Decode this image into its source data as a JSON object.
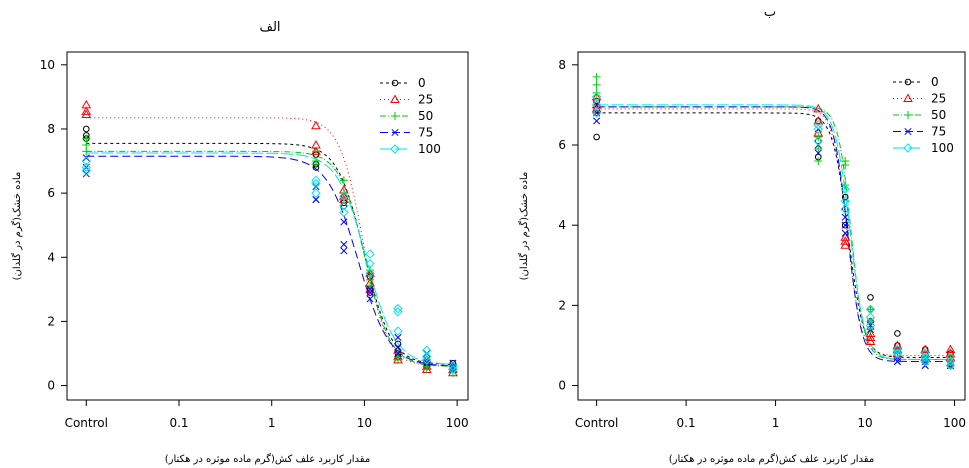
{
  "chart_data": [
    {
      "type": "scatter",
      "title": "الف",
      "xlabel": "مقدار کاربرد علف کش(گرم ماده موثره در هکتار)",
      "ylabel": "ماده خشک(گرم در گلدان)",
      "x_scale": "log",
      "xlim": [
        0.01,
        100
      ],
      "ylim": [
        0,
        10
      ],
      "x_ticks": [
        {
          "value": 0.01,
          "label": "Control"
        },
        {
          "value": 0.1,
          "label": "0.1"
        },
        {
          "value": 1,
          "label": "1"
        },
        {
          "value": 10,
          "label": "10"
        },
        {
          "value": 100,
          "label": "100"
        }
      ],
      "y_ticks": [
        0,
        2,
        4,
        6,
        8,
        10
      ],
      "grid": false,
      "legend_position": "top-right",
      "series": [
        {
          "name": "0",
          "color": "#000000",
          "marker": "circle",
          "dash": "3,3",
          "fit": {
            "upper": 7.55,
            "lower": 0.65,
            "ed50": 10.0,
            "slope": 3.0
          },
          "points": [
            [
              0.01,
              8.0
            ],
            [
              0.01,
              7.8
            ],
            [
              0.01,
              7.7
            ],
            [
              3,
              7.2
            ],
            [
              3,
              6.9
            ],
            [
              3,
              6.8
            ],
            [
              6,
              5.9
            ],
            [
              6,
              5.7
            ],
            [
              6,
              5.6
            ],
            [
              11.5,
              3.4
            ],
            [
              11.5,
              3.0
            ],
            [
              11.5,
              2.9
            ],
            [
              23,
              1.3
            ],
            [
              23,
              1.0
            ],
            [
              23,
              0.9
            ],
            [
              47,
              0.9
            ],
            [
              47,
              0.7
            ],
            [
              47,
              0.6
            ],
            [
              90,
              0.7
            ],
            [
              90,
              0.5
            ],
            [
              90,
              0.5
            ]
          ]
        },
        {
          "name": "25",
          "color": "#ff0000",
          "marker": "triangle",
          "dash": "1,3",
          "fit": {
            "upper": 8.35,
            "lower": 0.6,
            "ed50": 9.7,
            "slope": 3.4
          },
          "points": [
            [
              0.01,
              8.75
            ],
            [
              0.01,
              8.55
            ],
            [
              0.01,
              8.45
            ],
            [
              3,
              8.1
            ],
            [
              3,
              7.5
            ],
            [
              3,
              7.3
            ],
            [
              6,
              6.1
            ],
            [
              6,
              5.9
            ],
            [
              6,
              5.8
            ],
            [
              11.5,
              3.5
            ],
            [
              11.5,
              3.2
            ],
            [
              11.5,
              3.0
            ],
            [
              23,
              1.1
            ],
            [
              23,
              0.9
            ],
            [
              23,
              0.8
            ],
            [
              47,
              0.8
            ],
            [
              47,
              0.6
            ],
            [
              47,
              0.5
            ],
            [
              90,
              0.6
            ],
            [
              90,
              0.5
            ],
            [
              90,
              0.4
            ]
          ]
        },
        {
          "name": "50",
          "color": "#00cc00",
          "marker": "plus",
          "dash": "6,2,1,2",
          "fit": {
            "upper": 7.3,
            "lower": 0.6,
            "ed50": 10.2,
            "slope": 3.2
          },
          "points": [
            [
              0.01,
              7.7
            ],
            [
              0.01,
              7.5
            ],
            [
              0.01,
              7.3
            ],
            [
              3,
              7.3
            ],
            [
              3,
              7.0
            ],
            [
              3,
              6.9
            ],
            [
              6,
              6.4
            ],
            [
              6,
              6.0
            ],
            [
              6,
              5.8
            ],
            [
              11.5,
              3.6
            ],
            [
              11.5,
              3.3
            ],
            [
              11.5,
              3.1
            ],
            [
              23,
              1.0
            ],
            [
              23,
              0.9
            ],
            [
              23,
              0.8
            ],
            [
              47,
              0.7
            ],
            [
              47,
              0.6
            ],
            [
              47,
              0.5
            ],
            [
              90,
              0.6
            ],
            [
              90,
              0.5
            ],
            [
              90,
              0.4
            ]
          ]
        },
        {
          "name": "75",
          "color": "#0000ff",
          "marker": "cross",
          "dash": "8,4",
          "fit": {
            "upper": 7.15,
            "lower": 0.6,
            "ed50": 8.6,
            "slope": 2.6
          },
          "points": [
            [
              0.01,
              7.1
            ],
            [
              0.01,
              6.8
            ],
            [
              0.01,
              6.6
            ],
            [
              3,
              6.2
            ],
            [
              3,
              5.8
            ],
            [
              3,
              5.8
            ],
            [
              6,
              4.4
            ],
            [
              6,
              4.2
            ],
            [
              6,
              5.1
            ],
            [
              11.5,
              3.0
            ],
            [
              11.5,
              2.9
            ],
            [
              11.5,
              2.7
            ],
            [
              23,
              1.5
            ],
            [
              23,
              1.2
            ],
            [
              23,
              1.0
            ],
            [
              47,
              1.0
            ],
            [
              47,
              0.8
            ],
            [
              47,
              0.7
            ],
            [
              90,
              0.7
            ],
            [
              90,
              0.6
            ],
            [
              90,
              0.5
            ]
          ]
        },
        {
          "name": "100",
          "color": "#00e5ee",
          "marker": "diamond",
          "dash": "12,3",
          "fit": {
            "upper": 7.25,
            "lower": 0.65,
            "ed50": 10.5,
            "slope": 2.8
          },
          "points": [
            [
              0.01,
              7.0
            ],
            [
              0.01,
              6.8
            ],
            [
              0.01,
              6.7
            ],
            [
              3,
              6.4
            ],
            [
              3,
              6.3
            ],
            [
              3,
              6.0
            ],
            [
              6,
              5.9
            ],
            [
              6,
              5.6
            ],
            [
              6,
              5.4
            ],
            [
              11.5,
              4.1
            ],
            [
              11.5,
              3.8
            ],
            [
              11.5,
              3.5
            ],
            [
              23,
              2.4
            ],
            [
              23,
              2.3
            ],
            [
              23,
              1.7
            ],
            [
              47,
              1.1
            ],
            [
              47,
              0.9
            ],
            [
              47,
              0.8
            ],
            [
              90,
              0.6
            ],
            [
              90,
              0.5
            ],
            [
              90,
              0.5
            ]
          ]
        }
      ]
    },
    {
      "type": "scatter",
      "title": "ب",
      "xlabel": "مقدار کاربرد علف کش(گرم ماده موثره در هکتار)",
      "ylabel": "ماده خشک(گرم در گلدان)",
      "x_scale": "log",
      "xlim": [
        0.01,
        100
      ],
      "ylim": [
        0,
        8
      ],
      "x_ticks": [
        {
          "value": 0.01,
          "label": "Control"
        },
        {
          "value": 0.1,
          "label": "0.1"
        },
        {
          "value": 1,
          "label": "1"
        },
        {
          "value": 10,
          "label": "10"
        },
        {
          "value": 100,
          "label": "100"
        }
      ],
      "y_ticks": [
        0,
        2,
        4,
        6,
        8
      ],
      "grid": false,
      "legend_position": "top-right",
      "series": [
        {
          "name": "0",
          "color": "#000000",
          "marker": "circle",
          "dash": "3,3",
          "fit": {
            "upper": 6.8,
            "lower": 0.7,
            "ed50": 6.5,
            "slope": 5.0
          },
          "points": [
            [
              0.01,
              7.1
            ],
            [
              0.01,
              6.8
            ],
            [
              0.01,
              6.2
            ],
            [
              3,
              6.6
            ],
            [
              3,
              6.1
            ],
            [
              3,
              5.7
            ],
            [
              6,
              4.7
            ],
            [
              6,
              4.4
            ],
            [
              6,
              4.0
            ],
            [
              11.5,
              2.2
            ],
            [
              11.5,
              1.9
            ],
            [
              11.5,
              1.6
            ],
            [
              23,
              1.3
            ],
            [
              23,
              1.0
            ],
            [
              23,
              0.9
            ],
            [
              47,
              0.9
            ],
            [
              47,
              0.7
            ],
            [
              47,
              0.6
            ],
            [
              90,
              0.8
            ],
            [
              90,
              0.6
            ],
            [
              90,
              0.5
            ]
          ]
        },
        {
          "name": "25",
          "color": "#ff0000",
          "marker": "triangle",
          "dash": "1,3",
          "fit": {
            "upper": 6.9,
            "lower": 0.75,
            "ed50": 6.3,
            "slope": 5.6
          },
          "points": [
            [
              0.01,
              7.2
            ],
            [
              0.01,
              7.0
            ],
            [
              0.01,
              6.9
            ],
            [
              3,
              6.9
            ],
            [
              3,
              6.6
            ],
            [
              3,
              6.3
            ],
            [
              6,
              3.7
            ],
            [
              6,
              3.5
            ],
            [
              6,
              3.6
            ],
            [
              11.5,
              1.3
            ],
            [
              11.5,
              1.2
            ],
            [
              11.5,
              1.1
            ],
            [
              23,
              1.0
            ],
            [
              23,
              0.9
            ],
            [
              23,
              0.8
            ],
            [
              47,
              0.9
            ],
            [
              47,
              0.8
            ],
            [
              47,
              0.7
            ],
            [
              90,
              0.9
            ],
            [
              90,
              0.8
            ],
            [
              90,
              0.7
            ]
          ]
        },
        {
          "name": "50",
          "color": "#00cc00",
          "marker": "plus",
          "dash": "6,2,1,2",
          "fit": {
            "upper": 6.95,
            "lower": 0.65,
            "ed50": 7.0,
            "slope": 6.0
          },
          "points": [
            [
              0.01,
              7.7
            ],
            [
              0.01,
              7.5
            ],
            [
              0.01,
              7.3
            ],
            [
              3,
              6.2
            ],
            [
              3,
              5.9
            ],
            [
              3,
              5.6
            ],
            [
              6,
              5.6
            ],
            [
              6,
              5.5
            ],
            [
              6,
              5.0
            ],
            [
              11.5,
              1.9
            ],
            [
              11.5,
              1.6
            ],
            [
              11.5,
              1.4
            ],
            [
              23,
              0.9
            ],
            [
              23,
              0.8
            ],
            [
              23,
              0.7
            ],
            [
              47,
              0.7
            ],
            [
              47,
              0.6
            ],
            [
              47,
              0.6
            ],
            [
              90,
              0.7
            ],
            [
              90,
              0.6
            ],
            [
              90,
              0.5
            ]
          ]
        },
        {
          "name": "75",
          "color": "#0000ff",
          "marker": "cross",
          "dash": "8,4",
          "fit": {
            "upper": 6.95,
            "lower": 0.6,
            "ed50": 6.4,
            "slope": 5.6
          },
          "points": [
            [
              0.01,
              7.0
            ],
            [
              0.01,
              6.8
            ],
            [
              0.01,
              6.6
            ],
            [
              3,
              6.4
            ],
            [
              3,
              6.0
            ],
            [
              3,
              5.8
            ],
            [
              6,
              4.2
            ],
            [
              6,
              4.0
            ],
            [
              6,
              3.8
            ],
            [
              11.5,
              1.6
            ],
            [
              11.5,
              1.5
            ],
            [
              11.5,
              1.4
            ],
            [
              23,
              0.7
            ],
            [
              23,
              0.6
            ],
            [
              23,
              0.6
            ],
            [
              47,
              0.6
            ],
            [
              47,
              0.5
            ],
            [
              47,
              0.5
            ],
            [
              90,
              0.6
            ],
            [
              90,
              0.5
            ],
            [
              90,
              0.5
            ]
          ]
        },
        {
          "name": "100",
          "color": "#00e5ee",
          "marker": "diamond",
          "dash": "12,3",
          "fit": {
            "upper": 7.0,
            "lower": 0.65,
            "ed50": 6.8,
            "slope": 5.2
          },
          "points": [
            [
              0.01,
              7.2
            ],
            [
              0.01,
              7.0
            ],
            [
              0.01,
              6.8
            ],
            [
              3,
              6.5
            ],
            [
              3,
              6.4
            ],
            [
              3,
              6.1
            ],
            [
              6,
              4.9
            ],
            [
              6,
              4.6
            ],
            [
              6,
              4.4
            ],
            [
              11.5,
              1.9
            ],
            [
              11.5,
              1.7
            ],
            [
              11.5,
              1.5
            ],
            [
              23,
              0.9
            ],
            [
              23,
              0.8
            ],
            [
              23,
              0.8
            ],
            [
              47,
              0.8
            ],
            [
              47,
              0.7
            ],
            [
              47,
              0.6
            ],
            [
              90,
              0.7
            ],
            [
              90,
              0.6
            ],
            [
              90,
              0.5
            ]
          ]
        }
      ]
    }
  ]
}
